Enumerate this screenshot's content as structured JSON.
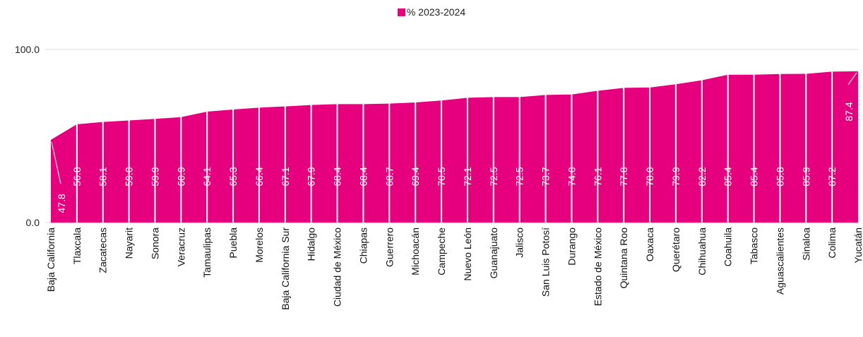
{
  "legend": {
    "label": "% 2023-2024",
    "color": "#e6007e"
  },
  "chart_data": {
    "type": "area",
    "title": "",
    "xlabel": "",
    "ylabel": "",
    "ylim": [
      0,
      100
    ],
    "yticks": [
      "0.0",
      "100.0"
    ],
    "grid": "horizontal at 100",
    "legend_position": "top-center",
    "colors": {
      "area": "#e6007e",
      "separator": "#ffffff",
      "gridline": "#d9d9d9",
      "leader": "#bfbfbf"
    },
    "categories": [
      "Baja California",
      "Tlaxcala",
      "Zacatecas",
      "Nayarit",
      "Sonora",
      "Veracruz",
      "Tamaulipas",
      "Puebla",
      "Morelos",
      "Baja California Sur",
      "Hidalgo",
      "Ciudad de México",
      "Chiapas",
      "Guerrero",
      "Michoacán",
      "Campeche",
      "Nuevo León",
      "Guanajuato",
      "Jalisco",
      "San Luis Potosí",
      "Durango",
      "Estado de México",
      "Quintana Roo",
      "Oaxaca",
      "Querétaro",
      "Chihuahua",
      "Coahuila",
      "Tabasco",
      "Aguascalientes",
      "Sinaloa",
      "Colima",
      "Yucatán"
    ],
    "series": [
      {
        "name": "% 2023-2024",
        "values": [
          47.8,
          56.8,
          58.1,
          59.0,
          59.9,
          60.9,
          64.1,
          65.3,
          66.4,
          67.1,
          67.9,
          68.4,
          68.4,
          68.7,
          69.4,
          70.5,
          72.1,
          72.5,
          72.5,
          73.7,
          74.0,
          76.1,
          77.8,
          78.0,
          79.9,
          82.2,
          85.4,
          85.4,
          85.8,
          85.9,
          87.2,
          87.4
        ],
        "labels": [
          "47.8",
          "56.8",
          "58.1",
          "59.0",
          "59.9",
          "60.9",
          "64.1",
          "65.3",
          "66.4",
          "67.1",
          "67.9",
          "68.4",
          "68.4",
          "68.7",
          "69.4",
          "70.5",
          "72.1",
          "72.5",
          "72.5",
          "73.7",
          "74.0",
          "76.1",
          "77.8",
          "78.0",
          "79.9",
          "82.2",
          "85.4",
          "85.4",
          "85.8",
          "85.9",
          "87.2",
          "87.4"
        ]
      }
    ]
  }
}
